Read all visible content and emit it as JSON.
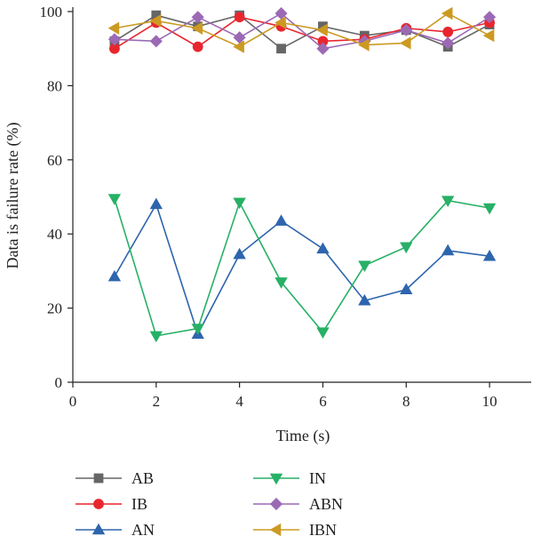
{
  "chart_data": {
    "type": "line",
    "title": "",
    "xlabel": "Time (s)",
    "ylabel": "Data is failure rate (%)",
    "xlim": [
      0,
      11
    ],
    "ylim": [
      0,
      100
    ],
    "xticks": [
      0,
      2,
      4,
      6,
      8,
      10
    ],
    "yticks": [
      0,
      20,
      40,
      60,
      80,
      100
    ],
    "grid": false,
    "legend_position": "bottom",
    "x": [
      1,
      2,
      3,
      4,
      5,
      6,
      7,
      8,
      9,
      10
    ],
    "series": [
      {
        "name": "AB",
        "marker": "square",
        "color": "#666666",
        "values": [
          92,
          99,
          96,
          99,
          90,
          96,
          93.5,
          95,
          90.5,
          96.5
        ]
      },
      {
        "name": "IB",
        "marker": "circle",
        "color": "#e8262e",
        "values": [
          90,
          97,
          90.5,
          98.5,
          96,
          92,
          92.5,
          95.5,
          94.5,
          97
        ]
      },
      {
        "name": "AN",
        "marker": "triangle-up",
        "color": "#2e65ad",
        "values": [
          28.5,
          48,
          13,
          34.5,
          43.5,
          36,
          22,
          25,
          35.5,
          34
        ]
      },
      {
        "name": "IN",
        "marker": "triangle-down",
        "color": "#27b066",
        "values": [
          49.5,
          12.5,
          14.5,
          48.5,
          27,
          13.5,
          31.5,
          36.5,
          49,
          47
        ]
      },
      {
        "name": "ABN",
        "marker": "diamond",
        "color": "#9c6ab5",
        "values": [
          92.5,
          92,
          98.5,
          93,
          99.5,
          90,
          92,
          95,
          91.5,
          98.5
        ]
      },
      {
        "name": "IBN",
        "marker": "triangle-left",
        "color": "#cc9a22",
        "values": [
          95.5,
          97.5,
          95.5,
          90.5,
          97,
          95,
          91,
          91.5,
          99.5,
          93.5
        ]
      }
    ]
  }
}
